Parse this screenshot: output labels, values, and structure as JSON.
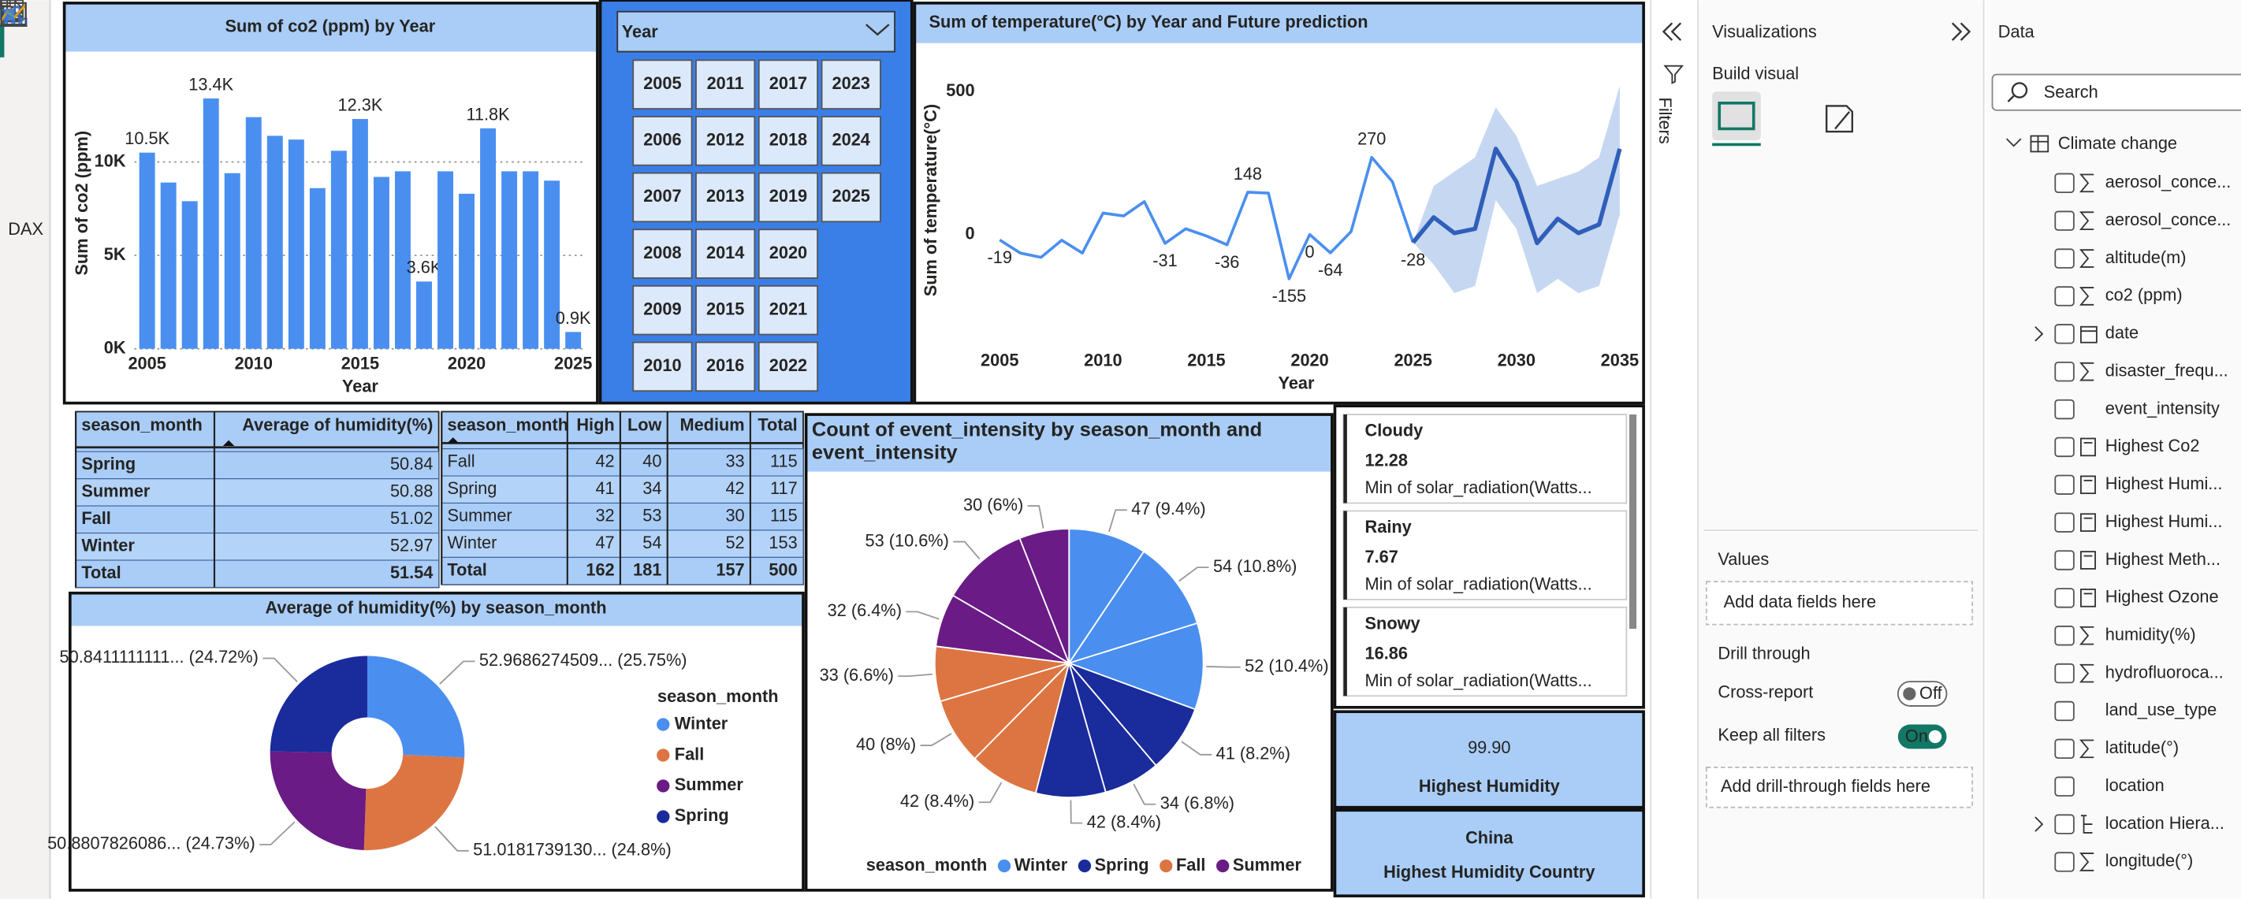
{
  "nav": {
    "dax_label": "DAX"
  },
  "chart_data": [
    {
      "type": "bar",
      "title": "Sum of co2 (ppm) by Year",
      "x_label": "Year",
      "y_label": "Sum of co2 (ppm)",
      "x": [
        2005,
        2006,
        2007,
        2008,
        2009,
        2010,
        2011,
        2012,
        2013,
        2014,
        2015,
        2016,
        2017,
        2018,
        2019,
        2020,
        2021,
        2022,
        2023,
        2024,
        2025
      ],
      "values": [
        10500,
        8900,
        7900,
        13400,
        9400,
        12400,
        11400,
        11200,
        8600,
        10600,
        12300,
        9200,
        9500,
        3600,
        9500,
        8300,
        11800,
        9500,
        9500,
        9000,
        900
      ],
      "value_labels": [
        "10.5K",
        null,
        null,
        "13.4K",
        null,
        null,
        null,
        null,
        null,
        null,
        "12.3K",
        null,
        null,
        "3.6K",
        null,
        null,
        "11.8K",
        null,
        null,
        null,
        "0.9K"
      ],
      "color": "#4a8ff0",
      "xlim": [
        2004.4,
        2025.6
      ],
      "xticks": [
        2005,
        2010,
        2015,
        2020,
        2025
      ],
      "ylim": [
        0,
        15600
      ],
      "yticks": [
        {
          "value": 0,
          "label": "0K"
        },
        {
          "value": 5000,
          "label": "5K"
        },
        {
          "value": 10000,
          "label": "10K"
        }
      ],
      "grid": true
    },
    {
      "type": "line",
      "title": "Sum of temperature(°C) by Year and Future prediction",
      "x_label": "Year",
      "y_label": "Sum of temperature(°C)",
      "series": [
        {
          "color": "#4a8ff0",
          "x": [
            2005,
            2006,
            2007,
            2008,
            2009,
            2010,
            2011,
            2012,
            2013,
            2014,
            2015,
            2016,
            2017,
            2018,
            2019,
            2020,
            2021,
            2022,
            2023,
            2024,
            2025
          ],
          "values": [
            -19,
            -65,
            -80,
            -20,
            -65,
            75,
            65,
            115,
            -31,
            20,
            -5,
            -36,
            148,
            145,
            -155,
            0,
            -64,
            10,
            270,
            185,
            -28
          ],
          "value_labels": [
            "-19",
            null,
            null,
            null,
            null,
            null,
            null,
            null,
            "-31",
            null,
            null,
            "-36",
            "148",
            null,
            "-155",
            "0",
            "-64",
            null,
            "270",
            null,
            "-28"
          ]
        },
        {
          "color": "#2f5fb8",
          "band_color": "#c6d7f2",
          "x": [
            2025,
            2026,
            2027,
            2028,
            2029,
            2030,
            2031,
            2032,
            2033,
            2034,
            2035
          ],
          "values": [
            -28,
            60,
            5,
            20,
            300,
            185,
            -30,
            55,
            5,
            35,
            300
          ],
          "lower": [
            -28,
            -105,
            -205,
            -180,
            120,
            20,
            -205,
            -155,
            -205,
            -180,
            70
          ],
          "upper": [
            -28,
            170,
            220,
            270,
            445,
            345,
            170,
            195,
            220,
            270,
            520
          ]
        }
      ],
      "xlim": [
        2003.1,
        2035.6
      ],
      "xticks": [
        2005,
        2010,
        2015,
        2020,
        2025,
        2030,
        2035
      ],
      "ylim": [
        -390,
        630
      ],
      "yticks": [
        0,
        500
      ],
      "grid": false
    },
    {
      "type": "donut",
      "title": "Average of humidity(%) by season_month",
      "legend_title": "season_month",
      "categories": [
        "Winter",
        "Fall",
        "Summer",
        "Spring"
      ],
      "values": [
        52.9686274509,
        51.018173913,
        50.8807826086,
        50.8411111111
      ],
      "value_labels": [
        "52.9686274509... (25.75%)",
        "51.0181739130... (24.8%)",
        "50.8807826086... (24.73%)",
        "50.8411111111... (24.72%)"
      ],
      "colors": [
        "#4a8ff0",
        "#dd7543",
        "#6a1b85",
        "#1a2b9b"
      ],
      "legend": "right"
    },
    {
      "type": "pie",
      "title": "Count of event_intensity by season_month and event_intensity",
      "legend_title": "season_month",
      "series": [
        {
          "name": "Winter",
          "color": "#4a8ff0",
          "values": [
            47,
            54,
            52
          ],
          "value_labels": [
            "47 (9.4%)",
            "54 (10.8%)",
            "52 (10.4%)"
          ]
        },
        {
          "name": "Spring",
          "color": "#1a2b9b",
          "values": [
            41,
            34,
            42
          ],
          "value_labels": [
            "41 (8.2%)",
            "34 (6.8%)",
            "42 (8.4%)"
          ]
        },
        {
          "name": "Fall",
          "color": "#dd7543",
          "values": [
            42,
            40,
            33
          ],
          "value_labels": [
            "42 (8.4%)",
            "40 (8%)",
            "33 (6.6%)"
          ]
        },
        {
          "name": "Summer",
          "color": "#6a1b85",
          "values": [
            32,
            53,
            30
          ],
          "value_labels": [
            "32 (6.4%)",
            "53 (10.6%)",
            "30 (6%)"
          ]
        }
      ],
      "legend": "bottom"
    }
  ],
  "slicer": {
    "title": "Year",
    "items": [
      "2005",
      "2006",
      "2007",
      "2008",
      "2009",
      "2010",
      "2011",
      "2012",
      "2013",
      "2014",
      "2015",
      "2016",
      "2017",
      "2018",
      "2019",
      "2020",
      "2021",
      "2022",
      "2023",
      "2024",
      "2025"
    ]
  },
  "humidity_table": {
    "columns": [
      "season_month",
      "Average of humidity(%)"
    ],
    "rows": [
      [
        "Spring",
        "50.84"
      ],
      [
        "Summer",
        "50.88"
      ],
      [
        "Fall",
        "51.02"
      ],
      [
        "Winter",
        "52.97"
      ],
      [
        "Total",
        "51.54"
      ]
    ]
  },
  "intensity_matrix": {
    "columns": [
      "season_month",
      "High",
      "Low",
      "Medium",
      "Total"
    ],
    "rows": [
      [
        "Fall",
        "42",
        "40",
        "33",
        "115"
      ],
      [
        "Spring",
        "41",
        "34",
        "42",
        "117"
      ],
      [
        "Summer",
        "32",
        "53",
        "30",
        "115"
      ],
      [
        "Winter",
        "47",
        "54",
        "52",
        "153"
      ],
      [
        "Total",
        "162",
        "181",
        "157",
        "500"
      ]
    ]
  },
  "solar_cards": [
    {
      "label": "Cloudy",
      "value": "12.28",
      "caption": "Min of solar_radiation(Watts..."
    },
    {
      "label": "Rainy",
      "value": "7.67",
      "caption": "Min of solar_radiation(Watts..."
    },
    {
      "label": "Snowy",
      "value": "16.86",
      "caption": "Min of solar_radiation(Watts..."
    }
  ],
  "humidity_card": {
    "value": "99.90",
    "caption": "Highest Humidity"
  },
  "country_card": {
    "value": "China",
    "caption": "Highest Humidity Country"
  },
  "filters_pane": {
    "title": "Filters"
  },
  "visualizations_pane": {
    "title": "Visualizations",
    "build_label": "Build visual",
    "values_label": "Values",
    "values_placeholder": "Add data fields here",
    "drill_label": "Drill through",
    "cross_report": "Cross-report",
    "cross_report_state": "Off",
    "keep_filters": "Keep all filters",
    "keep_filters_state": "On",
    "drill_placeholder": "Add drill-through fields here"
  },
  "data_pane": {
    "title": "Data",
    "search_placeholder": "Search",
    "table_name": "Climate change",
    "fields": [
      {
        "name": "aerosol_conce...",
        "icon": "sum"
      },
      {
        "name": "aerosol_conce...",
        "icon": "sum"
      },
      {
        "name": "altitude(m)",
        "icon": "sum"
      },
      {
        "name": "co2 (ppm)",
        "icon": "sum"
      },
      {
        "name": "date",
        "icon": "date",
        "expandable": true
      },
      {
        "name": "disaster_frequ...",
        "icon": "sum"
      },
      {
        "name": "event_intensity"
      },
      {
        "name": "Highest Co2",
        "icon": "calc"
      },
      {
        "name": "Highest Humi...",
        "icon": "calc"
      },
      {
        "name": "Highest Humi...",
        "icon": "calc"
      },
      {
        "name": "Highest Meth...",
        "icon": "calc"
      },
      {
        "name": "Highest Ozone",
        "icon": "calc"
      },
      {
        "name": "humidity(%)",
        "icon": "sum"
      },
      {
        "name": "hydrofluoroca...",
        "icon": "sum"
      },
      {
        "name": "land_use_type"
      },
      {
        "name": "latitude(°)",
        "icon": "sum"
      },
      {
        "name": "location"
      },
      {
        "name": "location Hiera...",
        "icon": "hierarchy",
        "expandable": true
      },
      {
        "name": "longitude(°)",
        "icon": "sum"
      }
    ]
  }
}
